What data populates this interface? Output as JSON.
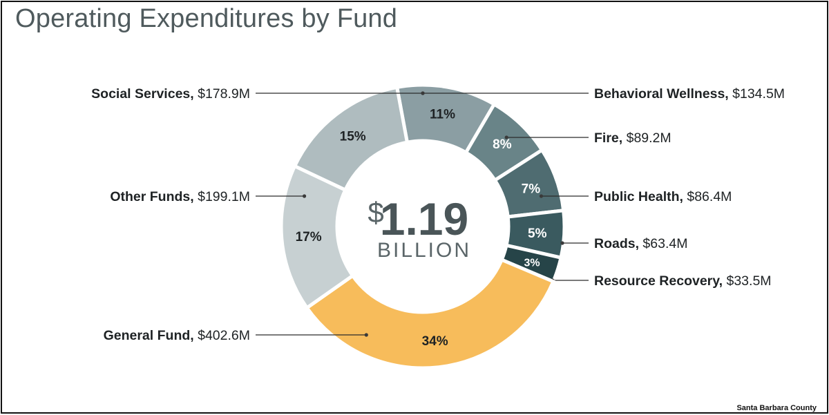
{
  "title": "Operating Expenditures by Fund",
  "source": "Santa Barbara County",
  "center": {
    "currency": "$",
    "value": "1.19",
    "unit": "BILLION"
  },
  "chart_data": {
    "type": "pie",
    "title": "Operating Expenditures by Fund",
    "total_label": "$1.19 BILLION",
    "slices": [
      {
        "name": "Behavioral Wellness",
        "amount_label": "$134.5M",
        "value": 134.5,
        "pct_label": "11%",
        "color": "#8b9ea3"
      },
      {
        "name": "Fire",
        "amount_label": "$89.2M",
        "value": 89.2,
        "pct_label": "8%",
        "color": "#698488"
      },
      {
        "name": "Public Health",
        "amount_label": "$86.4M",
        "value": 86.4,
        "pct_label": "7%",
        "color": "#4f6c71"
      },
      {
        "name": "Roads",
        "amount_label": "$63.4M",
        "value": 63.4,
        "pct_label": "5%",
        "color": "#3a5a5f"
      },
      {
        "name": "Resource Recovery",
        "amount_label": "$33.5M",
        "value": 33.5,
        "pct_label": "3%",
        "color": "#264448"
      },
      {
        "name": "General Fund",
        "amount_label": "$402.6M",
        "value": 402.6,
        "pct_label": "34%",
        "color": "#f7bc5b"
      },
      {
        "name": "Other Funds",
        "amount_label": "$199.1M",
        "value": 199.1,
        "pct_label": "17%",
        "color": "#c7d0d2"
      },
      {
        "name": "Social Services",
        "amount_label": "$178.9M",
        "value": 178.9,
        "pct_label": "15%",
        "color": "#afbcbf"
      }
    ]
  }
}
